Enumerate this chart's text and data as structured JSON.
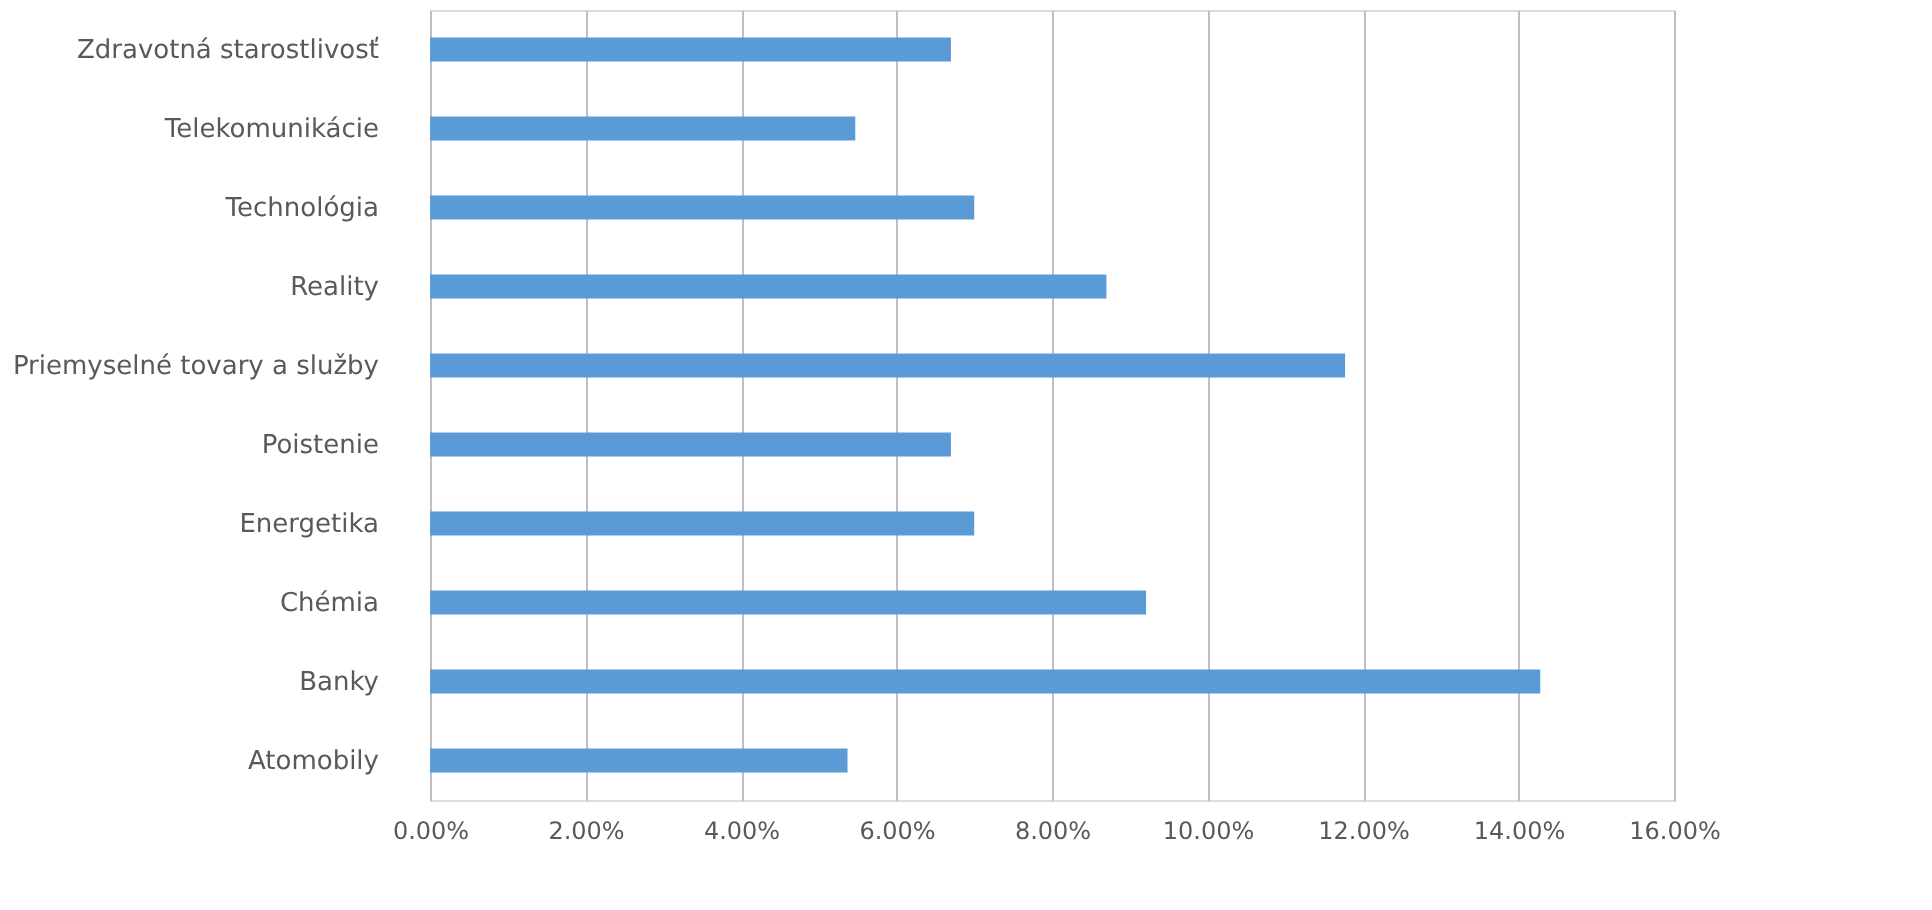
{
  "chart_data": {
    "type": "bar",
    "orientation": "horizontal",
    "categories": [
      "Zdravotná starostlivosť",
      "Telekomunikácie",
      "Technológia",
      "Reality",
      "Priemyselné tovary a služby",
      "Poistenie",
      "Energetika",
      "Chémia",
      "Banky",
      "Atomobily"
    ],
    "values": [
      6.7,
      5.47,
      7.0,
      8.7,
      11.77,
      6.7,
      7.0,
      9.21,
      14.28,
      5.37
    ],
    "color": "#5b9bd5",
    "xlim": [
      0,
      16
    ],
    "xticks": [
      {
        "value": 0,
        "label": "0.00%"
      },
      {
        "value": 2,
        "label": "2.00%"
      },
      {
        "value": 4,
        "label": "4.00%"
      },
      {
        "value": 6,
        "label": "6.00%"
      },
      {
        "value": 8,
        "label": "8.00%"
      },
      {
        "value": 10,
        "label": "10.00%"
      },
      {
        "value": 12,
        "label": "12.00%"
      },
      {
        "value": 14,
        "label": "14.00%"
      },
      {
        "value": 16,
        "label": "16.00%"
      }
    ],
    "grid": "x"
  }
}
